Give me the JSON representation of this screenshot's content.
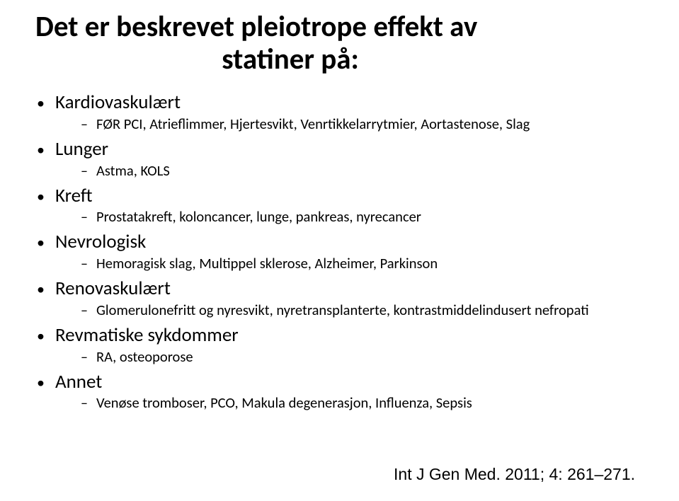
{
  "title": {
    "line1": "Det er beskrevet pleiotrope effekt av",
    "line2": "statiner på:"
  },
  "items": [
    {
      "label": "Kardiovaskulært",
      "sub": [
        "FØR PCI, Atrieflimmer, Hjertesvikt, Venrtikkelarrytmier, Aortastenose, Slag"
      ]
    },
    {
      "label": "Lunger",
      "sub": [
        "Astma, KOLS"
      ]
    },
    {
      "label": "Kreft",
      "sub": [
        "Prostatakreft, koloncancer, lunge, pankreas, nyrecancer"
      ]
    },
    {
      "label": "Nevrologisk",
      "sub": [
        "Hemoragisk slag, Multippel sklerose, Alzheimer, Parkinson"
      ]
    },
    {
      "label": "Renovaskulært",
      "sub": [
        "Glomerulonefritt og nyresvikt, nyretransplanterte, kontrastmiddelindusert nefropati"
      ]
    },
    {
      "label": "Revmatiske sykdommer",
      "sub": [
        "RA, osteoporose"
      ]
    },
    {
      "label": "Annet",
      "sub": [
        "Venøse tromboser, PCO, Makula degenerasjon, Influenza, Sepsis"
      ]
    }
  ],
  "citation": "Int J Gen Med. 2011; 4: 261–271.",
  "bullets": {
    "dot": "•",
    "dash": "–"
  }
}
